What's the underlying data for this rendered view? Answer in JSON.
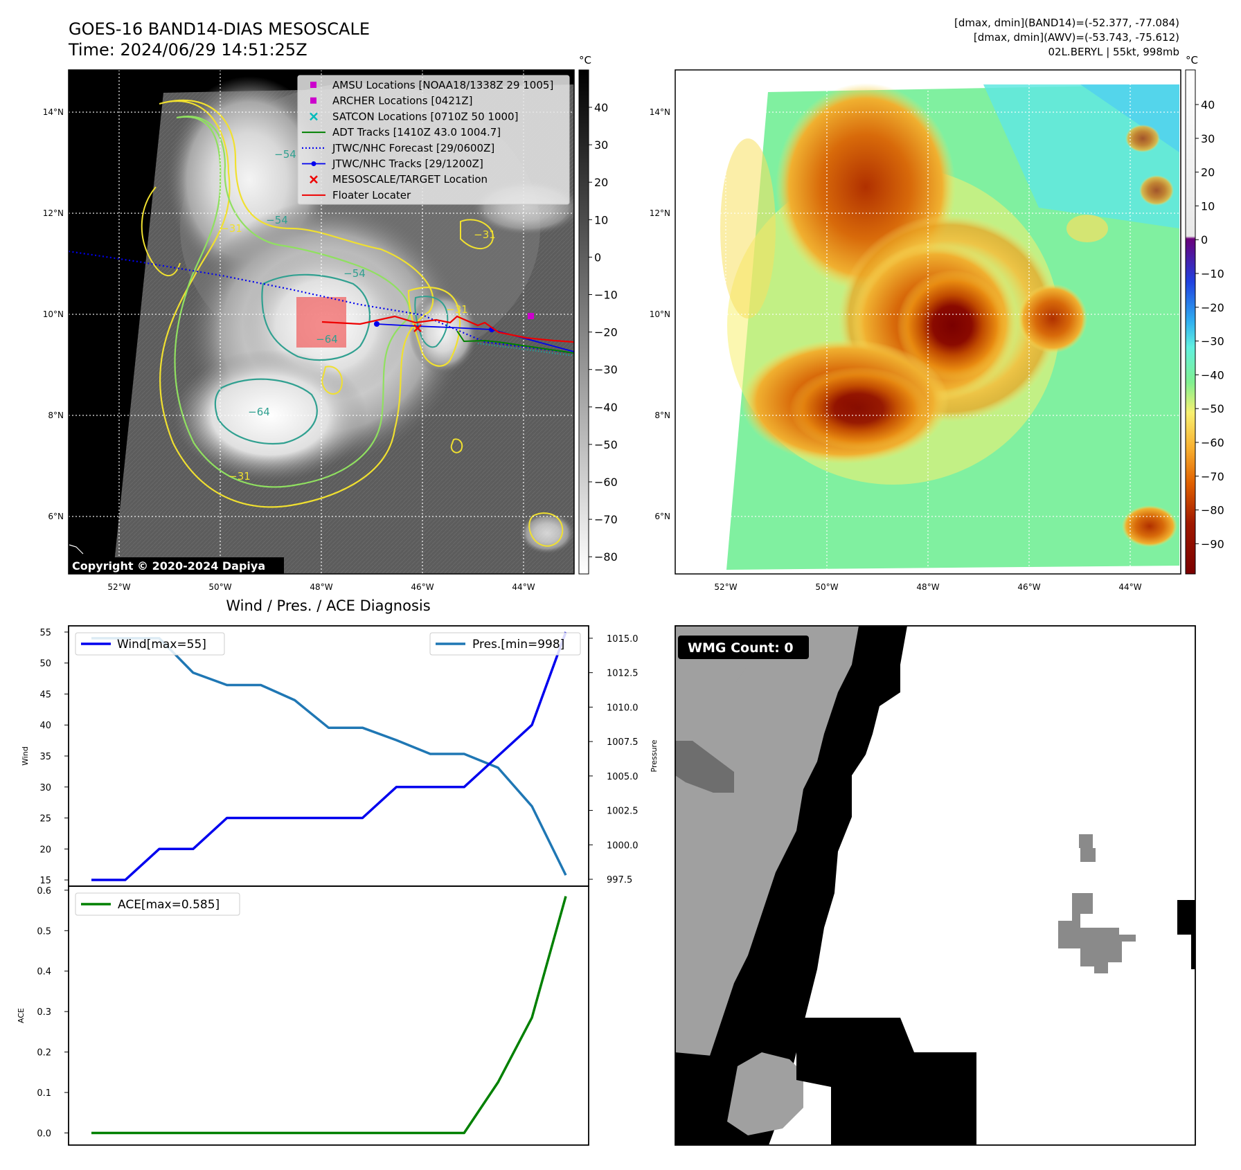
{
  "header": {
    "title_line1": "GOES-16 BAND14-DIAS MESOSCALE",
    "title_line2": "Time: 2024/06/29 14:51:25Z",
    "info_line1": "[dmax, dmin](BAND14)=(-52.377, -77.084)",
    "info_line2": "[dmax, dmin](AWV)=(-53.743, -75.612)",
    "info_line3": "02L.BERYL | 55kt, 998mb"
  },
  "map_axes": {
    "lon_labels": [
      "52°W",
      "50°W",
      "48°W",
      "46°W",
      "44°W"
    ],
    "lat_labels": [
      "14°N",
      "12°N",
      "10°N",
      "8°N",
      "6°N"
    ]
  },
  "ir_panel": {
    "colorbar_unit": "°C",
    "colorbar_ticks": [
      "40",
      "30",
      "20",
      "10",
      "0",
      "−10",
      "−20",
      "−30",
      "−40",
      "−50",
      "−60",
      "−70",
      "−80"
    ],
    "contour_labels": [
      "−31",
      "−54",
      "−54",
      "−64",
      "−64",
      "−31",
      "−31",
      "−54",
      "−31"
    ],
    "copyright": "Copyright © 2020-2024 Dapiya",
    "legend": [
      {
        "label": "AMSU Locations [NOAA18/1338Z 29 1005]",
        "marker": "square",
        "color": "#cc00cc"
      },
      {
        "label": "ARCHER Locations [0421Z]",
        "marker": "square",
        "color": "#cc00cc"
      },
      {
        "label": "SATCON Locations [0710Z 50 1000]",
        "marker": "x",
        "color": "#00bbbb"
      },
      {
        "label": "ADT Tracks [1410Z 43.0 1004.7]",
        "marker": "line",
        "color": "#008000"
      },
      {
        "label": "JTWC/NHC Forecast [29/0600Z]",
        "marker": "dotted",
        "color": "#0000ee"
      },
      {
        "label": "JTWC/NHC Tracks [29/1200Z]",
        "marker": "line-dot",
        "color": "#0000ee"
      },
      {
        "label": "MESOSCALE/TARGET Location",
        "marker": "x",
        "color": "#ee0000"
      },
      {
        "label": "Floater Locater",
        "marker": "line",
        "color": "#ee0000"
      }
    ]
  },
  "awv_panel": {
    "colorbar_unit": "°C",
    "colorbar_ticks": [
      "40",
      "30",
      "20",
      "10",
      "0",
      "−10",
      "−20",
      "−30",
      "−40",
      "−50",
      "−60",
      "−70",
      "−80",
      "−90"
    ]
  },
  "diag_panel": {
    "title": "Wind / Pres. / ACE Diagnosis",
    "wind_ylabel": "Wind",
    "pres_ylabel": "Pressure",
    "ace_ylabel": "ACE",
    "wind_legend": "Wind[max=55]",
    "pres_legend": "Pres.[min=998]",
    "ace_legend": "ACE[max=0.585]",
    "wind_ticks": [
      "55",
      "50",
      "45",
      "40",
      "35",
      "30",
      "25",
      "20",
      "15"
    ],
    "pres_ticks": [
      "1015.0",
      "1012.5",
      "1010.0",
      "1007.5",
      "1005.0",
      "1002.5",
      "1000.0",
      "997.5"
    ],
    "ace_ticks": [
      "0.6",
      "0.5",
      "0.4",
      "0.3",
      "0.2",
      "0.1",
      "0.0"
    ]
  },
  "wmg_panel": {
    "label": "WMG Count: 0"
  },
  "chart_data": [
    {
      "type": "line",
      "title": "Wind / Pres. / ACE Diagnosis",
      "x_index": [
        0,
        1,
        2,
        3,
        4,
        5,
        6,
        7,
        8,
        9,
        10,
        11,
        12,
        13,
        14
      ],
      "series": [
        {
          "name": "Wind[max=55]",
          "axis": "left",
          "color": "#0000ee",
          "values": [
            15,
            15,
            20,
            20,
            25,
            25,
            25,
            25,
            25,
            30,
            30,
            30,
            35,
            40,
            55
          ],
          "ylim": [
            14,
            56
          ]
        },
        {
          "name": "Pres.[min=998]",
          "axis": "right",
          "color": "#1f77b4",
          "values": [
            1015,
            1015,
            1015,
            1012.5,
            1011.6,
            1011.6,
            1010.5,
            1008.5,
            1008.5,
            1007.6,
            1006.6,
            1006.6,
            1005.6,
            1002.8,
            997.8
          ],
          "ylim": [
            997,
            1015.9
          ]
        }
      ],
      "ylabel_left": "Wind",
      "ylabel_right": "Pressure"
    },
    {
      "type": "line",
      "x_index": [
        0,
        1,
        2,
        3,
        4,
        5,
        6,
        7,
        8,
        9,
        10,
        11,
        12,
        13,
        14
      ],
      "series": [
        {
          "name": "ACE[max=0.585]",
          "color": "#008000",
          "values": [
            0,
            0,
            0,
            0,
            0,
            0,
            0,
            0,
            0,
            0,
            0,
            0,
            0.125,
            0.285,
            0.585
          ]
        }
      ],
      "ylabel": "ACE",
      "ylim": [
        -0.03,
        0.61
      ]
    }
  ]
}
